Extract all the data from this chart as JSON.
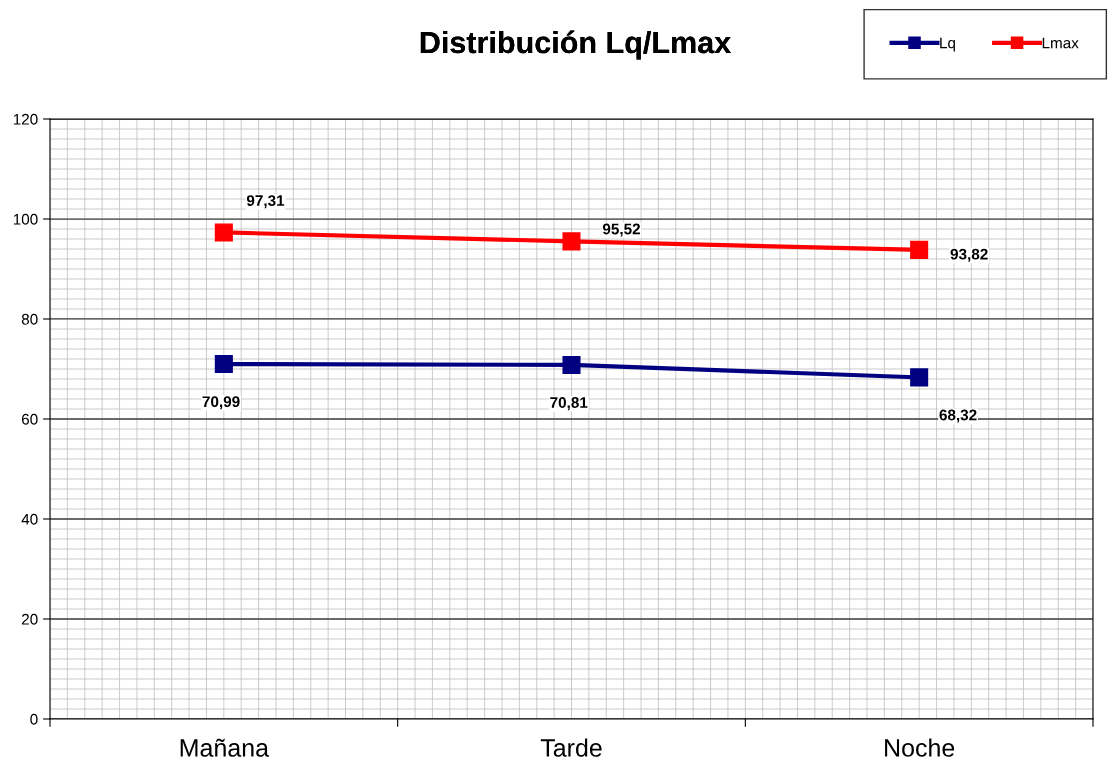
{
  "chart_data": {
    "type": "line",
    "title": "Distribución Lq/Lmax",
    "categories": [
      "Mañana",
      "Tarde",
      "Noche"
    ],
    "series": [
      {
        "name": "Lq",
        "color": "#000080",
        "values": [
          70.99,
          70.81,
          68.32
        ],
        "value_labels": [
          "70,99",
          "70,81",
          "68,32"
        ]
      },
      {
        "name": "Lmax",
        "color": "#ff0000",
        "values": [
          97.31,
          95.52,
          93.82
        ],
        "value_labels": [
          "97,31",
          "95,52",
          "93,82"
        ]
      }
    ],
    "ylim": [
      0,
      120
    ],
    "yticks": [
      0,
      20,
      40,
      60,
      80,
      100,
      120
    ],
    "grid": true,
    "legend": "top right",
    "marker": "square",
    "line_style": "solid"
  }
}
